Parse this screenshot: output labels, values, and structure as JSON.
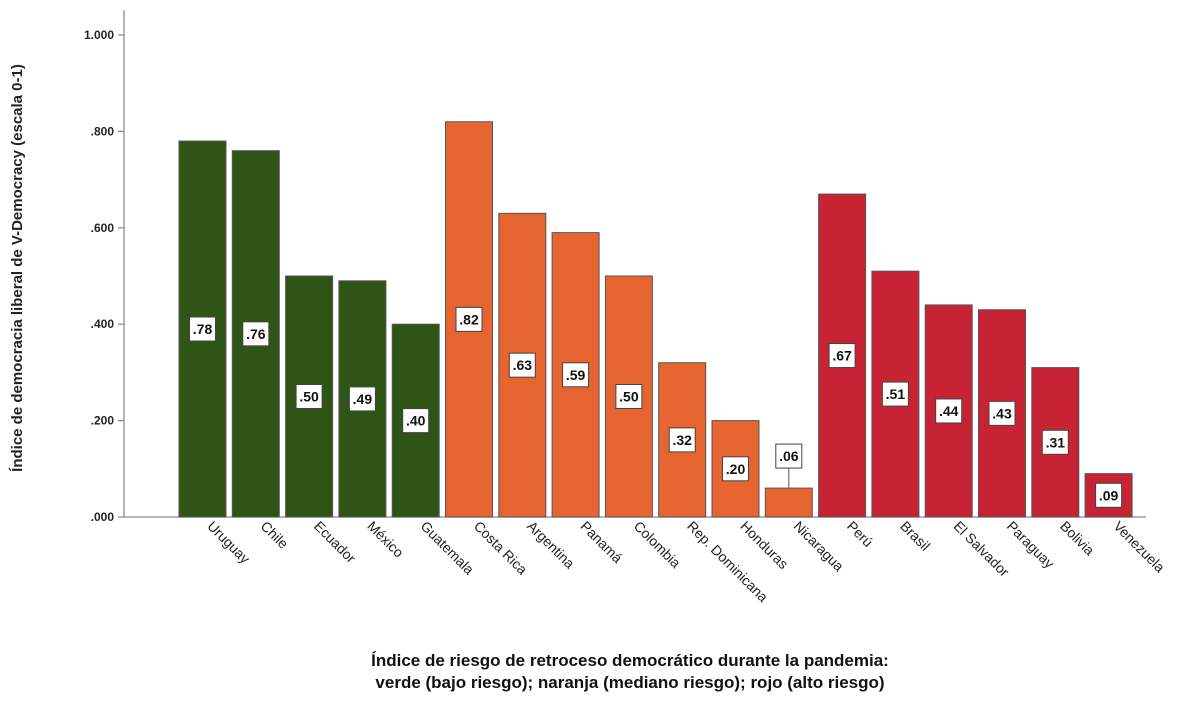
{
  "chart_data": {
    "type": "bar",
    "title": "",
    "ylabel": "Índice de democracia liberal de V-Democracy (escala 0-1)",
    "xlabel_lines": [
      "Índice de riesgo de retroceso democrático durante la pandemia:",
      "verde (bajo riesgo); naranja (mediano riesgo); rojo (alto riesgo)"
    ],
    "ylim": [
      0,
      1
    ],
    "yticks": [
      0,
      0.2,
      0.4,
      0.6,
      0.8,
      1.0
    ],
    "ytick_labels": [
      ".000",
      ".200",
      ".400",
      ".600",
      ".800",
      "1.000"
    ],
    "grid": false,
    "categories": [
      "Uruguay",
      "Chile",
      "Ecuador",
      "México",
      "Guatemala",
      "Costa Rica",
      "Argentina",
      "Panamá",
      "Colombia",
      "Rep. Dominicana",
      "Honduras",
      "Nicaragua",
      "Perú",
      "Brasil",
      "El Salvador",
      "Paraguay",
      "Bolivia",
      "Venezuela"
    ],
    "values": [
      0.78,
      0.76,
      0.5,
      0.49,
      0.4,
      0.82,
      0.63,
      0.59,
      0.5,
      0.32,
      0.2,
      0.06,
      0.67,
      0.51,
      0.44,
      0.43,
      0.31,
      0.09
    ],
    "value_labels": [
      ".78",
      ".76",
      ".50",
      ".49",
      ".40",
      ".82",
      ".63",
      ".59",
      ".50",
      ".32",
      ".20",
      ".06",
      ".67",
      ".51",
      ".44",
      ".43",
      ".31",
      ".09"
    ],
    "risk_groups": [
      "verde",
      "verde",
      "verde",
      "verde",
      "verde",
      "naranja",
      "naranja",
      "naranja",
      "naranja",
      "naranja",
      "naranja",
      "naranja",
      "rojo",
      "rojo",
      "rojo",
      "rojo",
      "rojo",
      "rojo"
    ],
    "colors": {
      "verde": "#2f5516",
      "naranja": "#e5642f",
      "rojo": "#c72334"
    }
  }
}
